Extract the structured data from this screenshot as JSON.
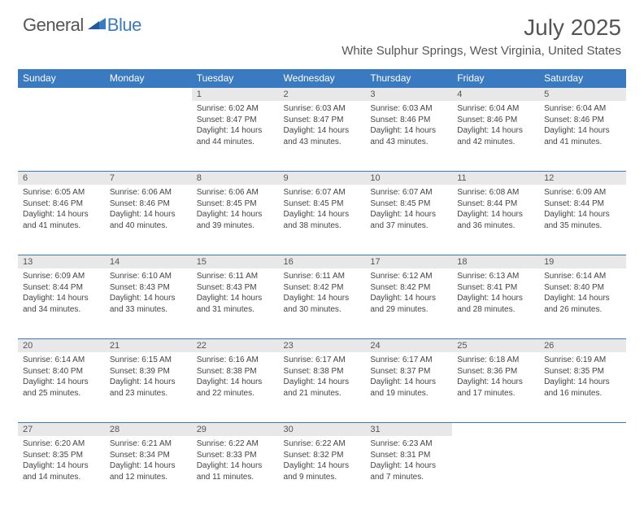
{
  "logo": {
    "general": "General",
    "blue": "Blue"
  },
  "title": "July 2025",
  "location": "White Sulphur Springs, West Virginia, United States",
  "colors": {
    "header_bg": "#3a7ac0",
    "daynum_bg": "#e8e8e8",
    "text": "#444",
    "title": "#555",
    "border": "#3a7ac0"
  },
  "weekdays": [
    "Sunday",
    "Monday",
    "Tuesday",
    "Wednesday",
    "Thursday",
    "Friday",
    "Saturday"
  ],
  "weeks": [
    [
      null,
      null,
      {
        "n": "1",
        "sr": "6:02 AM",
        "ss": "8:47 PM",
        "dl": "14 hours and 44 minutes."
      },
      {
        "n": "2",
        "sr": "6:03 AM",
        "ss": "8:47 PM",
        "dl": "14 hours and 43 minutes."
      },
      {
        "n": "3",
        "sr": "6:03 AM",
        "ss": "8:46 PM",
        "dl": "14 hours and 43 minutes."
      },
      {
        "n": "4",
        "sr": "6:04 AM",
        "ss": "8:46 PM",
        "dl": "14 hours and 42 minutes."
      },
      {
        "n": "5",
        "sr": "6:04 AM",
        "ss": "8:46 PM",
        "dl": "14 hours and 41 minutes."
      }
    ],
    [
      {
        "n": "6",
        "sr": "6:05 AM",
        "ss": "8:46 PM",
        "dl": "14 hours and 41 minutes."
      },
      {
        "n": "7",
        "sr": "6:06 AM",
        "ss": "8:46 PM",
        "dl": "14 hours and 40 minutes."
      },
      {
        "n": "8",
        "sr": "6:06 AM",
        "ss": "8:45 PM",
        "dl": "14 hours and 39 minutes."
      },
      {
        "n": "9",
        "sr": "6:07 AM",
        "ss": "8:45 PM",
        "dl": "14 hours and 38 minutes."
      },
      {
        "n": "10",
        "sr": "6:07 AM",
        "ss": "8:45 PM",
        "dl": "14 hours and 37 minutes."
      },
      {
        "n": "11",
        "sr": "6:08 AM",
        "ss": "8:44 PM",
        "dl": "14 hours and 36 minutes."
      },
      {
        "n": "12",
        "sr": "6:09 AM",
        "ss": "8:44 PM",
        "dl": "14 hours and 35 minutes."
      }
    ],
    [
      {
        "n": "13",
        "sr": "6:09 AM",
        "ss": "8:44 PM",
        "dl": "14 hours and 34 minutes."
      },
      {
        "n": "14",
        "sr": "6:10 AM",
        "ss": "8:43 PM",
        "dl": "14 hours and 33 minutes."
      },
      {
        "n": "15",
        "sr": "6:11 AM",
        "ss": "8:43 PM",
        "dl": "14 hours and 31 minutes."
      },
      {
        "n": "16",
        "sr": "6:11 AM",
        "ss": "8:42 PM",
        "dl": "14 hours and 30 minutes."
      },
      {
        "n": "17",
        "sr": "6:12 AM",
        "ss": "8:42 PM",
        "dl": "14 hours and 29 minutes."
      },
      {
        "n": "18",
        "sr": "6:13 AM",
        "ss": "8:41 PM",
        "dl": "14 hours and 28 minutes."
      },
      {
        "n": "19",
        "sr": "6:14 AM",
        "ss": "8:40 PM",
        "dl": "14 hours and 26 minutes."
      }
    ],
    [
      {
        "n": "20",
        "sr": "6:14 AM",
        "ss": "8:40 PM",
        "dl": "14 hours and 25 minutes."
      },
      {
        "n": "21",
        "sr": "6:15 AM",
        "ss": "8:39 PM",
        "dl": "14 hours and 23 minutes."
      },
      {
        "n": "22",
        "sr": "6:16 AM",
        "ss": "8:38 PM",
        "dl": "14 hours and 22 minutes."
      },
      {
        "n": "23",
        "sr": "6:17 AM",
        "ss": "8:38 PM",
        "dl": "14 hours and 21 minutes."
      },
      {
        "n": "24",
        "sr": "6:17 AM",
        "ss": "8:37 PM",
        "dl": "14 hours and 19 minutes."
      },
      {
        "n": "25",
        "sr": "6:18 AM",
        "ss": "8:36 PM",
        "dl": "14 hours and 17 minutes."
      },
      {
        "n": "26",
        "sr": "6:19 AM",
        "ss": "8:35 PM",
        "dl": "14 hours and 16 minutes."
      }
    ],
    [
      {
        "n": "27",
        "sr": "6:20 AM",
        "ss": "8:35 PM",
        "dl": "14 hours and 14 minutes."
      },
      {
        "n": "28",
        "sr": "6:21 AM",
        "ss": "8:34 PM",
        "dl": "14 hours and 12 minutes."
      },
      {
        "n": "29",
        "sr": "6:22 AM",
        "ss": "8:33 PM",
        "dl": "14 hours and 11 minutes."
      },
      {
        "n": "30",
        "sr": "6:22 AM",
        "ss": "8:32 PM",
        "dl": "14 hours and 9 minutes."
      },
      {
        "n": "31",
        "sr": "6:23 AM",
        "ss": "8:31 PM",
        "dl": "14 hours and 7 minutes."
      },
      null,
      null
    ]
  ],
  "labels": {
    "sunrise": "Sunrise:",
    "sunset": "Sunset:",
    "daylight": "Daylight:"
  }
}
